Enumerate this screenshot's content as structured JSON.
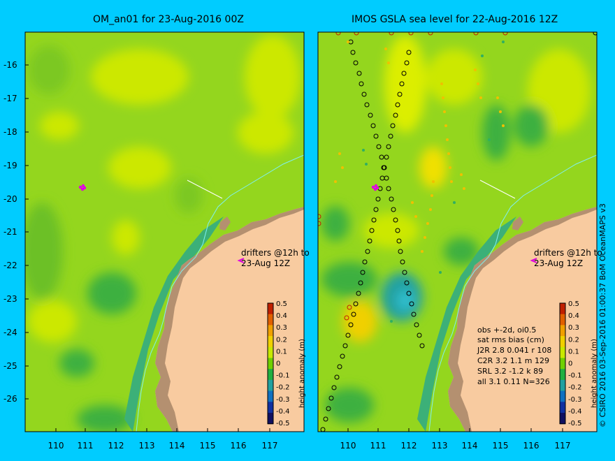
{
  "panels": [
    {
      "title": "OM_an01 for 23-Aug-2016 00Z"
    },
    {
      "title": "IMOS GSLA sea level  for 22-Aug-2016 12Z"
    }
  ],
  "axes": {
    "y_labels": [
      "-16",
      "-17",
      "-18",
      "-19",
      "-20",
      "-21",
      "-22",
      "-23",
      "-24",
      "-25",
      "-26"
    ],
    "x_labels": [
      "110",
      "111",
      "112",
      "113",
      "114",
      "115",
      "116",
      "117"
    ]
  },
  "drifters_note": [
    "drifters @12h to",
    "23-Aug 12Z"
  ],
  "colorbar": {
    "label": "height anomaly (m)",
    "ticks": [
      "0.5",
      "0.4",
      "0.3",
      "0.2",
      "0.1",
      "0",
      "-0.1",
      "-0.2",
      "-0.3",
      "-0.4",
      "-0.5"
    ],
    "colors": [
      "#c02000",
      "#e06000",
      "#f0a000",
      "#f0d000",
      "#c8e800",
      "#70d000",
      "#20b040",
      "#20a0a0",
      "#1070c0",
      "#1030a0",
      "#101060"
    ]
  },
  "stats": {
    "header1": "obs +-2d, oi0.5",
    "header2": "sat rms bias (cm)",
    "rows": [
      "J2R   2.8  0.041  r 108",
      "C2R   3.2  1.1  m 129",
      "SRL   3.2  -1.2  k 89",
      "all   3.1  0.11  N=326"
    ]
  },
  "copyright": "© CSIRO 2016   03-Sep-2016 01:00:37 BoM OceanMAPS v3",
  "colors": {
    "background": "#00ccff",
    "land": "#f8cba0",
    "sea_base": "#94d61e",
    "coast_shelf": "#b49070"
  }
}
